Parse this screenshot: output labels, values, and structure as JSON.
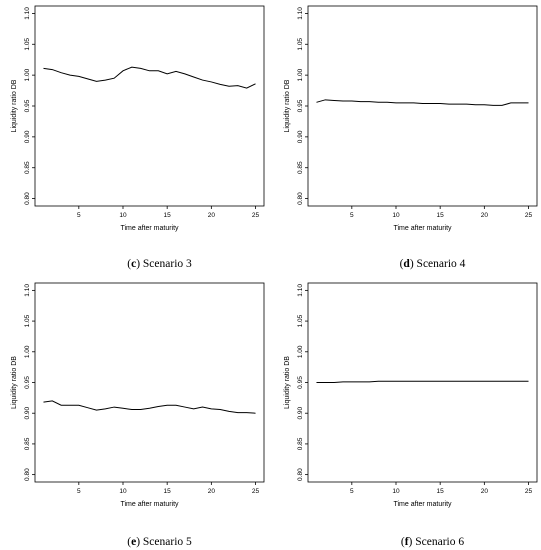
{
  "chart_data": [
    {
      "type": "line",
      "panel": "c",
      "caption": "Scenario 3",
      "xlabel": "Time after maturity",
      "ylabel": "Liquidity ratio DB",
      "xlim": [
        1,
        25
      ],
      "ylim": [
        0.8,
        1.1
      ],
      "xticks": [
        5,
        10,
        15,
        20,
        25
      ],
      "yticks": [
        0.8,
        0.85,
        0.9,
        0.95,
        1.0,
        1.05,
        1.1
      ],
      "ytick_labels": [
        "0.80",
        "0.85",
        "0.90",
        "0.95",
        "1.00",
        "1.05",
        "1.10"
      ],
      "x": [
        1,
        2,
        3,
        4,
        5,
        6,
        7,
        8,
        9,
        10,
        11,
        12,
        13,
        14,
        15,
        16,
        17,
        18,
        19,
        20,
        21,
        22,
        23,
        24,
        25
      ],
      "y": [
        1.011,
        1.009,
        1.004,
        1.0,
        0.998,
        0.994,
        0.99,
        0.992,
        0.995,
        1.007,
        1.013,
        1.011,
        1.007,
        1.007,
        1.002,
        1.006,
        1.002,
        0.997,
        0.992,
        0.989,
        0.985,
        0.982,
        0.983,
        0.979,
        0.986
      ]
    },
    {
      "type": "line",
      "panel": "d",
      "caption": "Scenario 4",
      "xlabel": "Time after maturity",
      "ylabel": "Liquidity ratio DB",
      "xlim": [
        1,
        25
      ],
      "ylim": [
        0.8,
        1.1
      ],
      "xticks": [
        5,
        10,
        15,
        20,
        25
      ],
      "yticks": [
        0.8,
        0.85,
        0.9,
        0.95,
        1.0,
        1.05,
        1.1
      ],
      "ytick_labels": [
        "0.80",
        "0.85",
        "0.90",
        "0.95",
        "1.00",
        "1.05",
        "1.10"
      ],
      "x": [
        1,
        2,
        3,
        4,
        5,
        6,
        7,
        8,
        9,
        10,
        11,
        12,
        13,
        14,
        15,
        16,
        17,
        18,
        19,
        20,
        21,
        22,
        23,
        24,
        25
      ],
      "y": [
        0.956,
        0.96,
        0.959,
        0.958,
        0.958,
        0.957,
        0.957,
        0.956,
        0.956,
        0.955,
        0.955,
        0.955,
        0.954,
        0.954,
        0.954,
        0.953,
        0.953,
        0.953,
        0.952,
        0.952,
        0.951,
        0.951,
        0.955,
        0.955,
        0.955
      ]
    },
    {
      "type": "line",
      "panel": "e",
      "caption": "Scenario 5",
      "xlabel": "Time after maturity",
      "ylabel": "Liquidity ratio DB",
      "xlim": [
        1,
        25
      ],
      "ylim": [
        0.8,
        1.1
      ],
      "xticks": [
        5,
        10,
        15,
        20,
        25
      ],
      "yticks": [
        0.8,
        0.85,
        0.9,
        0.95,
        1.0,
        1.05,
        1.1
      ],
      "ytick_labels": [
        "0.80",
        "0.85",
        "0.90",
        "0.95",
        "1.00",
        "1.05",
        "1.10"
      ],
      "x": [
        1,
        2,
        3,
        4,
        5,
        6,
        7,
        8,
        9,
        10,
        11,
        12,
        13,
        14,
        15,
        16,
        17,
        18,
        19,
        20,
        21,
        22,
        23,
        24,
        25
      ],
      "y": [
        0.918,
        0.92,
        0.913,
        0.913,
        0.913,
        0.909,
        0.905,
        0.907,
        0.91,
        0.908,
        0.906,
        0.906,
        0.908,
        0.911,
        0.913,
        0.913,
        0.91,
        0.907,
        0.91,
        0.907,
        0.906,
        0.903,
        0.901,
        0.901,
        0.9
      ]
    },
    {
      "type": "line",
      "panel": "f",
      "caption": "Scenario 6",
      "xlabel": "Time after maturity",
      "ylabel": "Liquidity ratio DB",
      "xlim": [
        1,
        25
      ],
      "ylim": [
        0.8,
        1.1
      ],
      "xticks": [
        5,
        10,
        15,
        20,
        25
      ],
      "yticks": [
        0.8,
        0.85,
        0.9,
        0.95,
        1.0,
        1.05,
        1.1
      ],
      "ytick_labels": [
        "0.80",
        "0.85",
        "0.90",
        "0.95",
        "1.00",
        "1.05",
        "1.10"
      ],
      "x": [
        1,
        2,
        3,
        4,
        5,
        6,
        7,
        8,
        9,
        10,
        11,
        12,
        13,
        14,
        15,
        16,
        17,
        18,
        19,
        20,
        21,
        22,
        23,
        24,
        25
      ],
      "y": [
        0.95,
        0.95,
        0.95,
        0.951,
        0.951,
        0.951,
        0.951,
        0.952,
        0.952,
        0.952,
        0.952,
        0.952,
        0.952,
        0.952,
        0.952,
        0.952,
        0.952,
        0.952,
        0.952,
        0.952,
        0.952,
        0.952,
        0.952,
        0.952,
        0.952
      ]
    }
  ]
}
